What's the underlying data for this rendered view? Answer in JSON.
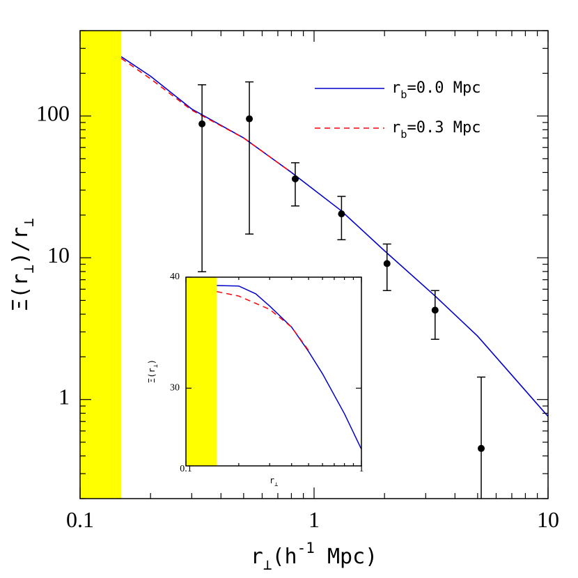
{
  "chart_data": [
    {
      "type": "line",
      "xscale": "log",
      "yscale": "log",
      "xlabel": "r_⊥(h^{-1} Mpc)",
      "ylabel": "Ξ(r_⊥)/r_⊥",
      "xlim": [
        0.1,
        10
      ],
      "xticks": [
        0.1,
        1,
        10
      ],
      "xminor": [
        0.2,
        0.3,
        0.4,
        0.5,
        0.6,
        0.7,
        0.8,
        0.9,
        2,
        3,
        4,
        5,
        6,
        7,
        8,
        9
      ],
      "ylim": [
        0.2,
        400
      ],
      "yticks": [
        1,
        10,
        100
      ],
      "yminor": [
        0.2,
        0.3,
        0.4,
        0.5,
        0.6,
        0.7,
        0.8,
        0.9,
        2,
        3,
        4,
        5,
        6,
        7,
        8,
        9,
        20,
        30,
        40,
        50,
        60,
        70,
        80,
        90,
        200,
        300,
        400
      ],
      "shade": [
        0.1,
        0.15
      ],
      "shade_color": "#ffff00",
      "series": [
        {
          "name": "r_b=0.0 Mpc",
          "color": "#0000cc",
          "dash": false,
          "x": [
            0.15,
            0.2,
            0.3,
            0.5,
            0.8,
            1.3,
            2,
            3.3,
            5,
            10
          ],
          "values": [
            262,
            191,
            112,
            70,
            40,
            21.6,
            11.2,
            5.35,
            2.8,
            0.76
          ]
        },
        {
          "name": "r_b=0.3 Mpc",
          "color": "#ff0000",
          "dash": true,
          "x": [
            0.15,
            0.2,
            0.3,
            0.5,
            0.8
          ],
          "values": [
            255,
            183,
            110,
            70,
            40
          ]
        }
      ],
      "points": {
        "color": "#000000",
        "x": [
          0.332,
          0.529,
          0.831,
          1.31,
          2.05,
          3.29,
          5.18
        ],
        "values": [
          88,
          95.5,
          36,
          20.4,
          9.1,
          4.27,
          0.452
        ],
        "upper": [
          166,
          174,
          46.8,
          27.1,
          12.5,
          5.87,
          1.44
        ],
        "lower": [
          7.97,
          14.7,
          23.2,
          13.4,
          5.87,
          2.66,
          0.1
        ]
      }
    },
    {
      "type": "line",
      "xscale": "linear_log_x",
      "yscale": "linear",
      "xlabel": "r_⊥",
      "ylabel": "Ξ(r_⊥)",
      "xlim": [
        0.1,
        1
      ],
      "xticks": [
        0.1,
        1
      ],
      "xminor": [
        0.2,
        0.3,
        0.4,
        0.5,
        0.6,
        0.7,
        0.8,
        0.9
      ],
      "ylim": [
        23,
        40
      ],
      "yticks": [
        30,
        40
      ],
      "yminor": [],
      "shade": [
        0.1,
        0.15
      ],
      "shade_color": "#ffff00",
      "series": [
        {
          "color": "#0000cc",
          "dash": false,
          "x": [
            0.15,
            0.2,
            0.25,
            0.3,
            0.4,
            0.5,
            0.6,
            0.8,
            1
          ],
          "values": [
            39.25,
            39.2,
            38.5,
            37.4,
            35.5,
            33.3,
            31.3,
            27.7,
            24.5
          ]
        },
        {
          "color": "#ff0000",
          "dash": true,
          "x": [
            0.15,
            0.2,
            0.3,
            0.4,
            0.5
          ],
          "values": [
            38.7,
            38.3,
            37.1,
            35.5,
            33.4
          ]
        }
      ]
    }
  ]
}
